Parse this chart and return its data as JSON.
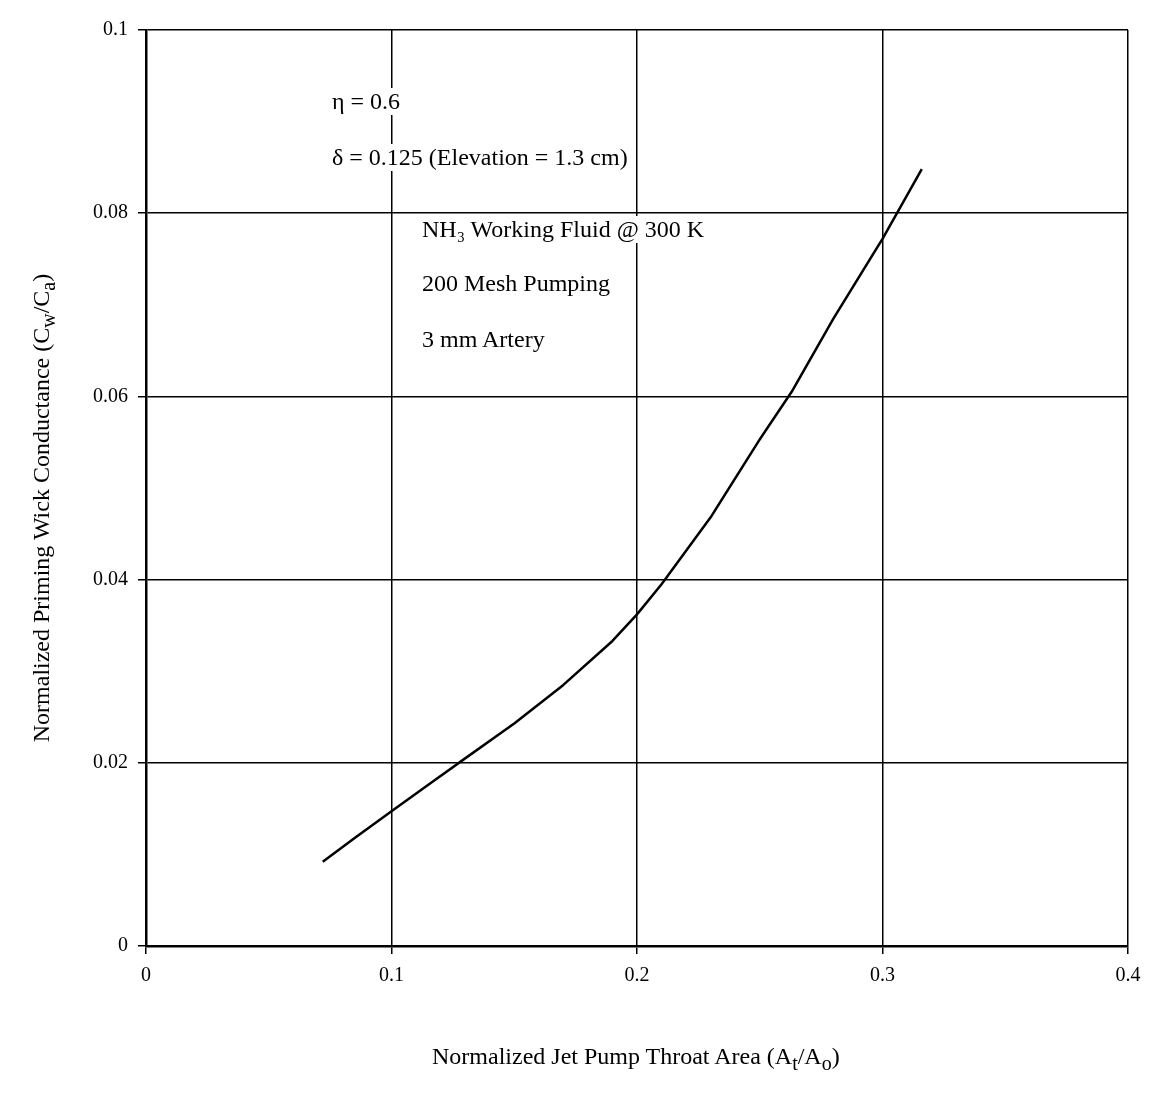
{
  "chart_data": {
    "type": "line",
    "xlabel": "Normalized Jet Pump Throat Area (A$_{t}$/A$_{o}$)",
    "ylabel": "Normalized Priming Wick Conductance (C$_{w}$/C$_{a}$)",
    "x": [
      0.072,
      0.085,
      0.1,
      0.115,
      0.128,
      0.15,
      0.17,
      0.19,
      0.2,
      0.21,
      0.23,
      0.25,
      0.263,
      0.28,
      0.3,
      0.316
    ],
    "series": [
      {
        "color": "#000000",
        "values": [
          0.0092,
          0.0118,
          0.0147,
          0.0176,
          0.0201,
          0.0243,
          0.0285,
          0.0333,
          0.0362,
          0.0395,
          0.0468,
          0.0553,
          0.0605,
          0.0685,
          0.0772,
          0.0848
        ]
      }
    ],
    "xlim": [
      0,
      0.4
    ],
    "xticks": [
      0,
      0.1,
      0.2,
      0.3,
      0.4
    ],
    "ylim": [
      0,
      0.1
    ],
    "yticks": [
      0,
      0.02,
      0.04,
      0.06,
      0.08,
      0.1
    ],
    "grid": true,
    "legend": false,
    "marker": "none",
    "line_style": "solid",
    "annotations": [
      "η = 0.6",
      "δ = 0.125 (Elevation = 1.3 cm)",
      "NH₃ Working Fluid @ 300 K",
      "200 Mesh Pumping",
      "3 mm Artery"
    ]
  }
}
